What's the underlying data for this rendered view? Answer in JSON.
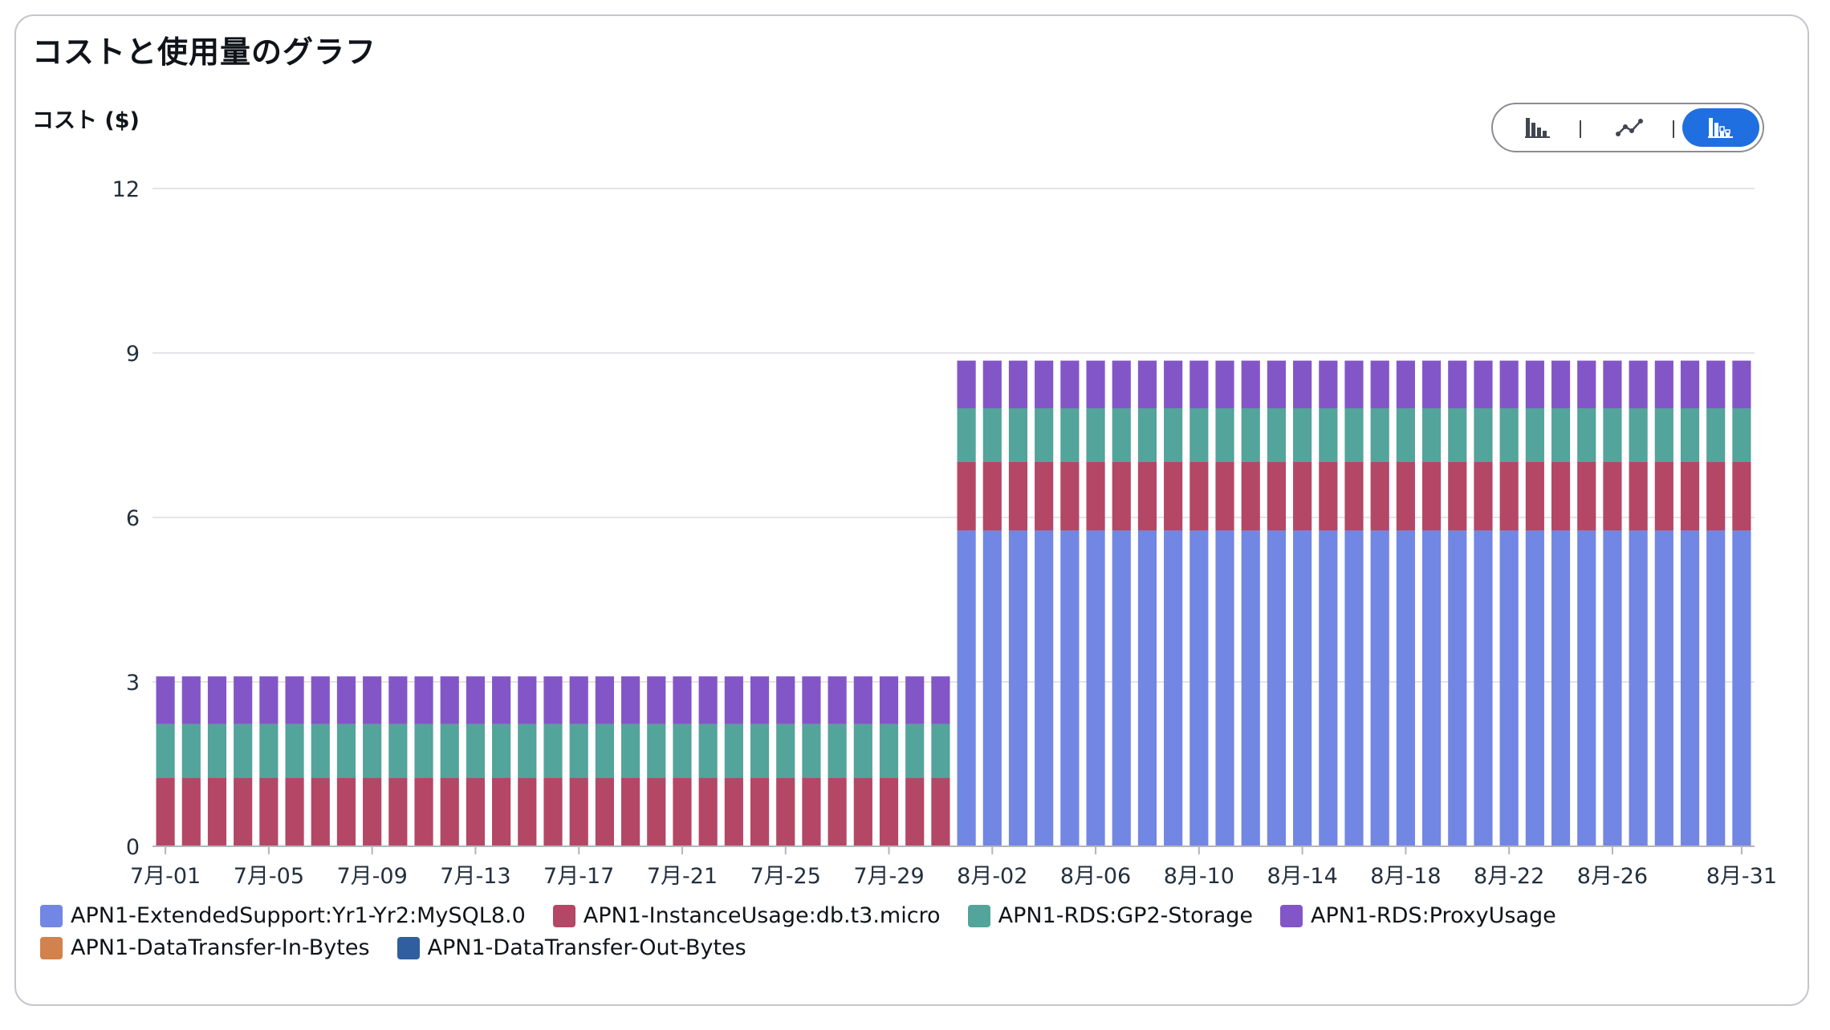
{
  "panel": {
    "title": "コストと使用量のグラフ",
    "y_axis_label": "コスト ($)"
  },
  "view_toggle": {
    "options": [
      "bar-chart-icon",
      "line-chart-icon",
      "stacked-bar-chart-icon"
    ],
    "selected": "stacked-bar-chart-icon",
    "active_color": "#1f6fe0"
  },
  "chart_data": {
    "type": "bar",
    "stacked": true,
    "title": "",
    "xlabel": "",
    "ylabel": "コスト ($)",
    "ylim": [
      0,
      12
    ],
    "y_ticks": [
      "0",
      "3",
      "6",
      "9",
      "12"
    ],
    "grid": true,
    "legend_position": "bottom",
    "x": [
      "7月-01",
      "7月-02",
      "7月-03",
      "7月-04",
      "7月-05",
      "7月-06",
      "7月-07",
      "7月-08",
      "7月-09",
      "7月-10",
      "7月-11",
      "7月-12",
      "7月-13",
      "7月-14",
      "7月-15",
      "7月-16",
      "7月-17",
      "7月-18",
      "7月-19",
      "7月-20",
      "7月-21",
      "7月-22",
      "7月-23",
      "7月-24",
      "7月-25",
      "7月-26",
      "7月-27",
      "7月-28",
      "7月-29",
      "7月-30",
      "7月-31",
      "8月-01",
      "8月-02",
      "8月-03",
      "8月-04",
      "8月-05",
      "8月-06",
      "8月-07",
      "8月-08",
      "8月-09",
      "8月-10",
      "8月-11",
      "8月-12",
      "8月-13",
      "8月-14",
      "8月-15",
      "8月-16",
      "8月-17",
      "8月-18",
      "8月-19",
      "8月-20",
      "8月-21",
      "8月-22",
      "8月-23",
      "8月-24",
      "8月-25",
      "8月-26",
      "8月-27",
      "8月-28",
      "8月-29",
      "8月-30",
      "8月-31"
    ],
    "x_tick_labels": [
      "7月-01",
      "7月-05",
      "7月-09",
      "7月-13",
      "7月-17",
      "7月-21",
      "7月-25",
      "7月-29",
      "8月-02",
      "8月-06",
      "8月-10",
      "8月-14",
      "8月-18",
      "8月-22",
      "8月-26",
      "8月-31"
    ],
    "series": [
      {
        "name": "APN1-ExtendedSupport:Yr1-Yr2:MySQL8.0",
        "color": "#7287e3",
        "values": [
          0,
          0,
          0,
          0,
          0,
          0,
          0,
          0,
          0,
          0,
          0,
          0,
          0,
          0,
          0,
          0,
          0,
          0,
          0,
          0,
          0,
          0,
          0,
          0,
          0,
          0,
          0,
          0,
          0,
          0,
          0,
          5.76,
          5.76,
          5.76,
          5.76,
          5.76,
          5.76,
          5.76,
          5.76,
          5.76,
          5.76,
          5.76,
          5.76,
          5.76,
          5.76,
          5.76,
          5.76,
          5.76,
          5.76,
          5.76,
          5.76,
          5.76,
          5.76,
          5.76,
          5.76,
          5.76,
          5.76,
          5.76,
          5.76,
          5.76,
          5.76,
          5.76
        ]
      },
      {
        "name": "APN1-InstanceUsage:db.t3.micro",
        "color": "#b44766",
        "values": [
          1.25,
          1.25,
          1.25,
          1.25,
          1.25,
          1.25,
          1.25,
          1.25,
          1.25,
          1.25,
          1.25,
          1.25,
          1.25,
          1.25,
          1.25,
          1.25,
          1.25,
          1.25,
          1.25,
          1.25,
          1.25,
          1.25,
          1.25,
          1.25,
          1.25,
          1.25,
          1.25,
          1.25,
          1.25,
          1.25,
          1.25,
          1.25,
          1.25,
          1.25,
          1.25,
          1.25,
          1.25,
          1.25,
          1.25,
          1.25,
          1.25,
          1.25,
          1.25,
          1.25,
          1.25,
          1.25,
          1.25,
          1.25,
          1.25,
          1.25,
          1.25,
          1.25,
          1.25,
          1.25,
          1.25,
          1.25,
          1.25,
          1.25,
          1.25,
          1.25,
          1.25,
          1.25
        ]
      },
      {
        "name": "APN1-RDS:GP2-Storage",
        "color": "#53a49a",
        "values": [
          0.98,
          0.98,
          0.98,
          0.98,
          0.98,
          0.98,
          0.98,
          0.98,
          0.98,
          0.98,
          0.98,
          0.98,
          0.98,
          0.98,
          0.98,
          0.98,
          0.98,
          0.98,
          0.98,
          0.98,
          0.98,
          0.98,
          0.98,
          0.98,
          0.98,
          0.98,
          0.98,
          0.98,
          0.98,
          0.98,
          0.98,
          0.98,
          0.98,
          0.98,
          0.98,
          0.98,
          0.98,
          0.98,
          0.98,
          0.98,
          0.98,
          0.98,
          0.98,
          0.98,
          0.98,
          0.98,
          0.98,
          0.98,
          0.98,
          0.98,
          0.98,
          0.98,
          0.98,
          0.98,
          0.98,
          0.98,
          0.98,
          0.98,
          0.98,
          0.98,
          0.98,
          0.98
        ]
      },
      {
        "name": "APN1-RDS:ProxyUsage",
        "color": "#8356c8",
        "values": [
          0.87,
          0.87,
          0.87,
          0.87,
          0.87,
          0.87,
          0.87,
          0.87,
          0.87,
          0.87,
          0.87,
          0.87,
          0.87,
          0.87,
          0.87,
          0.87,
          0.87,
          0.87,
          0.87,
          0.87,
          0.87,
          0.87,
          0.87,
          0.87,
          0.87,
          0.87,
          0.87,
          0.87,
          0.87,
          0.87,
          0.87,
          0.87,
          0.87,
          0.87,
          0.87,
          0.87,
          0.87,
          0.87,
          0.87,
          0.87,
          0.87,
          0.87,
          0.87,
          0.87,
          0.87,
          0.87,
          0.87,
          0.87,
          0.87,
          0.87,
          0.87,
          0.87,
          0.87,
          0.87,
          0.87,
          0.87,
          0.87,
          0.87,
          0.87,
          0.87,
          0.87,
          0.87
        ]
      },
      {
        "name": "APN1-DataTransfer-In-Bytes",
        "color": "#d2824c",
        "values": [
          0,
          0,
          0,
          0,
          0,
          0,
          0,
          0,
          0,
          0,
          0,
          0,
          0,
          0,
          0,
          0,
          0,
          0,
          0,
          0,
          0,
          0,
          0,
          0,
          0,
          0,
          0,
          0,
          0,
          0,
          0,
          0,
          0,
          0,
          0,
          0,
          0,
          0,
          0,
          0,
          0,
          0,
          0,
          0,
          0,
          0,
          0,
          0,
          0,
          0,
          0,
          0,
          0,
          0,
          0,
          0,
          0,
          0,
          0,
          0,
          0,
          0
        ]
      },
      {
        "name": "APN1-DataTransfer-Out-Bytes",
        "color": "#2f5f9e",
        "values": [
          0,
          0,
          0,
          0,
          0,
          0,
          0,
          0,
          0,
          0,
          0,
          0,
          0,
          0,
          0,
          0,
          0,
          0,
          0,
          0,
          0,
          0,
          0,
          0,
          0,
          0,
          0,
          0,
          0,
          0,
          0,
          0,
          0,
          0,
          0,
          0,
          0,
          0,
          0,
          0,
          0,
          0,
          0,
          0,
          0,
          0,
          0,
          0,
          0,
          0,
          0,
          0,
          0,
          0,
          0,
          0,
          0,
          0,
          0,
          0,
          0,
          0
        ]
      }
    ]
  }
}
